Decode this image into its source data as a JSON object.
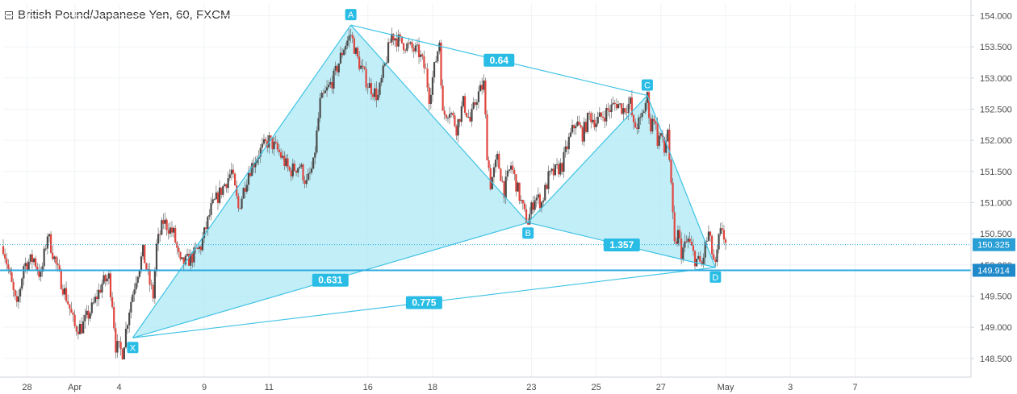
{
  "header": {
    "title": "British Pound/Japanese Yen, 60, FXCM"
  },
  "colors": {
    "up": "#4a4a4a",
    "down": "#e0463f",
    "wick": "#555555",
    "pattern_fill": "#aee8f5",
    "pattern_line": "#3fc3e4",
    "label_bg": "#29bde6",
    "grid": "#f0f3f5",
    "axis": "#cfd6dc",
    "hline": "#29a9e0"
  },
  "chart_data": {
    "type": "candlestick",
    "title": "British Pound/Japanese Yen, 60, FXCM",
    "ylim": [
      148.2,
      154.2
    ],
    "y_ticks": [
      "154.000",
      "153.500",
      "153.000",
      "152.500",
      "152.000",
      "151.500",
      "151.000",
      "150.500",
      "150.000",
      "149.500",
      "149.000",
      "148.500"
    ],
    "x_ticks": [
      {
        "label": "28",
        "t": 28
      },
      {
        "label": "Apr",
        "t": 42
      },
      {
        "label": "4",
        "t": 55
      },
      {
        "label": "9",
        "t": 80
      },
      {
        "label": "11",
        "t": 99
      },
      {
        "label": "16",
        "t": 128
      },
      {
        "label": "18",
        "t": 147
      },
      {
        "label": "23",
        "t": 176
      },
      {
        "label": "25",
        "t": 195
      },
      {
        "label": "27",
        "t": 214
      },
      {
        "label": "May",
        "t": 233
      },
      {
        "label": "3",
        "t": 252
      },
      {
        "label": "7",
        "t": 271
      }
    ],
    "t_range": [
      21,
      305
    ],
    "pattern": {
      "points": [
        {
          "name": "X",
          "t": 59,
          "price": 148.83
        },
        {
          "name": "A",
          "t": 123,
          "price": 153.85
        },
        {
          "name": "B",
          "t": 175,
          "price": 150.68
        },
        {
          "name": "C",
          "t": 210,
          "price": 152.72
        },
        {
          "name": "D",
          "t": 230,
          "price": 149.96
        }
      ],
      "ratios": [
        {
          "label": "0.64",
          "between": [
            "A",
            "C"
          ]
        },
        {
          "label": "0.631",
          "between": [
            "X",
            "B"
          ]
        },
        {
          "label": "1.357",
          "between": [
            "B",
            "D"
          ]
        },
        {
          "label": "0.775",
          "between": [
            "X",
            "D"
          ]
        }
      ]
    },
    "price_lines": [
      {
        "label": "150.325",
        "price": 150.325,
        "style": "dotted"
      },
      {
        "label": "149.914",
        "price": 149.914,
        "style": "solid"
      }
    ],
    "close_path": [
      [
        21,
        150.3
      ],
      [
        23,
        149.8
      ],
      [
        25,
        149.3
      ],
      [
        27,
        150.0
      ],
      [
        30,
        150.1
      ],
      [
        32,
        149.8
      ],
      [
        34,
        150.5
      ],
      [
        35,
        150.3
      ],
      [
        37,
        149.9
      ],
      [
        40,
        149.4
      ],
      [
        42,
        149.0
      ],
      [
        44,
        149.0
      ],
      [
        47,
        149.3
      ],
      [
        50,
        149.7
      ],
      [
        52,
        149.8
      ],
      [
        53,
        149.4
      ],
      [
        54,
        148.7
      ],
      [
        56,
        148.6
      ],
      [
        58,
        149.3
      ],
      [
        60,
        149.8
      ],
      [
        62,
        150.2
      ],
      [
        64,
        149.7
      ],
      [
        65,
        149.5
      ],
      [
        66,
        150.3
      ],
      [
        68,
        150.7
      ],
      [
        71,
        150.5
      ],
      [
        73,
        150.0
      ],
      [
        76,
        150.1
      ],
      [
        79,
        150.3
      ],
      [
        82,
        150.9
      ],
      [
        85,
        151.2
      ],
      [
        88,
        151.5
      ],
      [
        90,
        150.9
      ],
      [
        93,
        151.5
      ],
      [
        96,
        151.8
      ],
      [
        99,
        152.0
      ],
      [
        102,
        151.8
      ],
      [
        105,
        151.5
      ],
      [
        108,
        151.6
      ],
      [
        110,
        151.3
      ],
      [
        112,
        151.6
      ],
      [
        114,
        152.6
      ],
      [
        116,
        152.8
      ],
      [
        118,
        153.0
      ],
      [
        121,
        153.5
      ],
      [
        123,
        153.7
      ],
      [
        125,
        153.3
      ],
      [
        128,
        152.9
      ],
      [
        131,
        152.7
      ],
      [
        133,
        153.2
      ],
      [
        135,
        153.7
      ],
      [
        137,
        153.6
      ],
      [
        140,
        153.5
      ],
      [
        143,
        153.4
      ],
      [
        145,
        153.1
      ],
      [
        146,
        152.7
      ],
      [
        148,
        153.3
      ],
      [
        149,
        153.6
      ],
      [
        150,
        152.4
      ],
      [
        152,
        152.5
      ],
      [
        154,
        152.2
      ],
      [
        156,
        152.6
      ],
      [
        158,
        152.3
      ],
      [
        160,
        152.7
      ],
      [
        162,
        152.9
      ],
      [
        163,
        151.8
      ],
      [
        164,
        151.3
      ],
      [
        166,
        151.7
      ],
      [
        168,
        151.2
      ],
      [
        170,
        151.6
      ],
      [
        172,
        151.2
      ],
      [
        174,
        150.8
      ],
      [
        175,
        150.7
      ],
      [
        177,
        151.1
      ],
      [
        179,
        151.0
      ],
      [
        181,
        151.4
      ],
      [
        183,
        151.5
      ],
      [
        185,
        151.6
      ],
      [
        187,
        152.0
      ],
      [
        189,
        152.3
      ],
      [
        191,
        152.1
      ],
      [
        193,
        152.4
      ],
      [
        195,
        152.3
      ],
      [
        197,
        152.4
      ],
      [
        199,
        152.5
      ],
      [
        201,
        152.6
      ],
      [
        203,
        152.5
      ],
      [
        205,
        152.6
      ],
      [
        206,
        152.2
      ],
      [
        208,
        152.3
      ],
      [
        210,
        152.7
      ],
      [
        211,
        152.2
      ],
      [
        212,
        152.4
      ],
      [
        213,
        152.0
      ],
      [
        214,
        152.1
      ],
      [
        215,
        151.8
      ],
      [
        216,
        152.2
      ],
      [
        217,
        151.2
      ],
      [
        218,
        150.3
      ],
      [
        219,
        150.5
      ],
      [
        220,
        150.2
      ],
      [
        222,
        150.4
      ],
      [
        224,
        150.1
      ],
      [
        226,
        150.0
      ],
      [
        227,
        150.3
      ],
      [
        228,
        150.5
      ],
      [
        229,
        150.2
      ],
      [
        230,
        149.95
      ],
      [
        231,
        150.4
      ],
      [
        232,
        150.6
      ],
      [
        233,
        150.33
      ]
    ]
  }
}
